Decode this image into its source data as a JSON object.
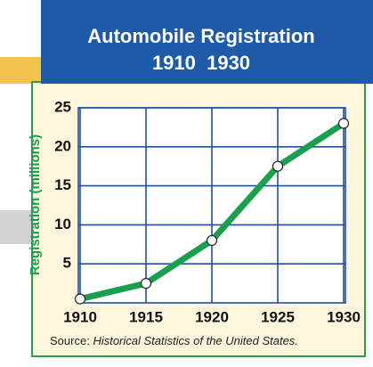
{
  "chart_data": {
    "type": "line",
    "title": "Automobile Registration",
    "subtitle": "1910  1930",
    "y_label": "Registration (millions)",
    "source_prefix": "Source:",
    "source_title": "Historical Statistics of the United States.",
    "x": [
      1910,
      1915,
      1920,
      1925,
      1930
    ],
    "series": [
      {
        "color": "#19a04f",
        "values": [
          0.5,
          2.5,
          8,
          17.5,
          23
        ]
      }
    ],
    "xlim": [
      1910,
      1930
    ],
    "xticks": [
      1910,
      1915,
      1920,
      1925,
      1930
    ],
    "ylim": [
      0,
      25
    ],
    "yticks": [
      5,
      10,
      15,
      20,
      25
    ],
    "grid": true
  }
}
